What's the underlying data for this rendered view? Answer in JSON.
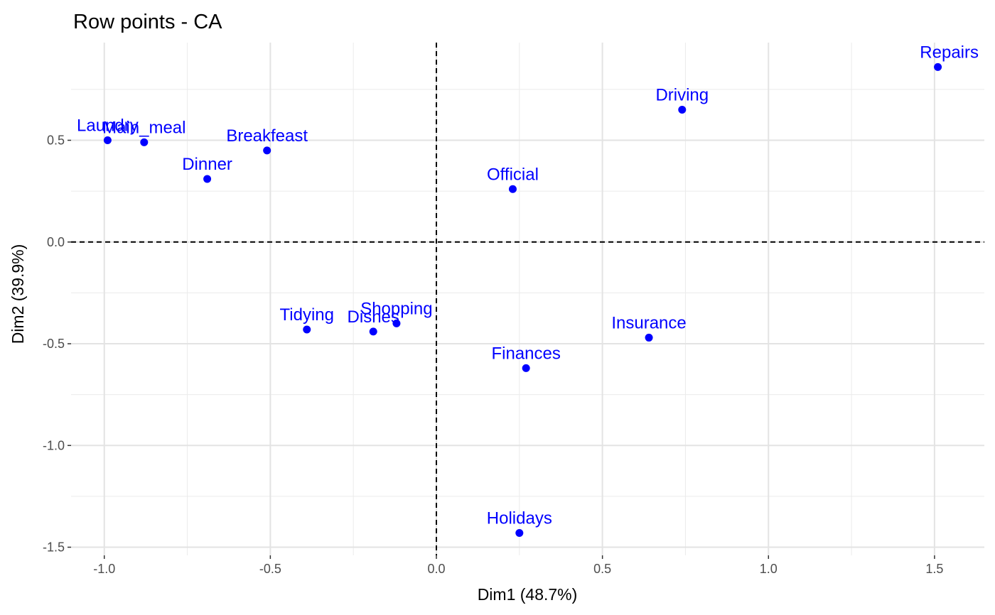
{
  "chart_data": {
    "type": "scatter",
    "title": "Row points - CA",
    "xlabel": "Dim1 (48.7%)",
    "ylabel": "Dim2 (39.9%)",
    "xlim": [
      -1.1,
      1.65
    ],
    "ylim": [
      -1.54,
      0.98
    ],
    "x_ticks": [
      -1.0,
      -0.5,
      0.0,
      0.5,
      1.0,
      1.5
    ],
    "y_ticks": [
      -1.5,
      -1.0,
      -0.5,
      0.0,
      0.5
    ],
    "x_tick_labels": [
      "-1.0",
      "-0.5",
      "0.0",
      "0.5",
      "1.0",
      "1.5"
    ],
    "y_tick_labels": [
      "-1.5",
      "-1.0",
      "-0.5",
      "0.0",
      "0.5"
    ],
    "x_minor": [
      -0.75,
      -0.25,
      0.25,
      0.75,
      1.25
    ],
    "y_minor": [
      -1.25,
      -0.75,
      -0.25,
      0.25,
      0.75
    ],
    "grid": true,
    "reference_lines": {
      "x": 0,
      "y": 0,
      "style": "dashed"
    },
    "point_color": "#0000ff",
    "points": [
      {
        "label": "Laundry",
        "x": -0.99,
        "y": 0.5
      },
      {
        "label": "Main_meal",
        "x": -0.88,
        "y": 0.49
      },
      {
        "label": "Dinner",
        "x": -0.69,
        "y": 0.31
      },
      {
        "label": "Breakfeast",
        "x": -0.51,
        "y": 0.45
      },
      {
        "label": "Tidying",
        "x": -0.39,
        "y": -0.43
      },
      {
        "label": "Dishes",
        "x": -0.19,
        "y": -0.44
      },
      {
        "label": "Shopping",
        "x": -0.12,
        "y": -0.4
      },
      {
        "label": "Official",
        "x": 0.23,
        "y": 0.26
      },
      {
        "label": "Driving",
        "x": 0.74,
        "y": 0.65
      },
      {
        "label": "Finances",
        "x": 0.27,
        "y": -0.62
      },
      {
        "label": "Insurance",
        "x": 0.64,
        "y": -0.47
      },
      {
        "label": "Repairs",
        "x": 1.51,
        "y": 0.86
      },
      {
        "label": "Holidays",
        "x": 0.25,
        "y": -1.43
      }
    ]
  }
}
